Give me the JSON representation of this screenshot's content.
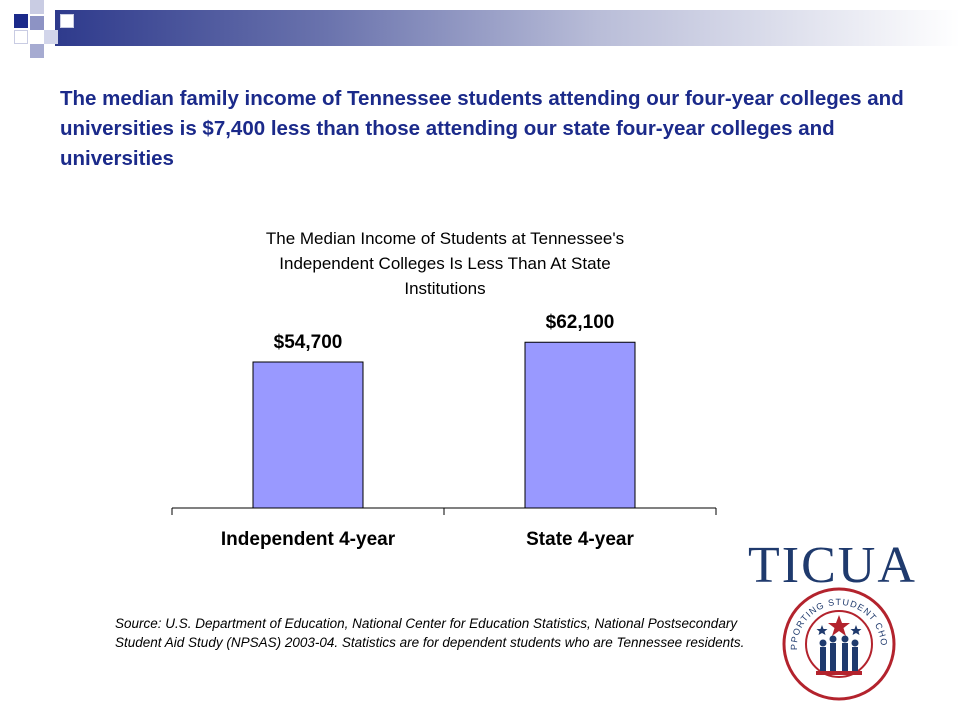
{
  "headline": "The median family income of Tennessee students attending our four-year colleges and universities is $7,400 less than those attending our state four-year colleges and universities",
  "chart_data": {
    "type": "bar",
    "title_lines": [
      "The Median Income of Students at Tennessee's",
      "Independent Colleges Is Less Than At State",
      "Institutions"
    ],
    "categories": [
      "Independent 4-year",
      "State 4-year"
    ],
    "values": [
      54700,
      62100
    ],
    "data_labels": [
      "$54,700",
      "$62,100"
    ],
    "bar_color": "#9999ff",
    "ylim": [
      0,
      70000
    ],
    "grid": false,
    "legend": "none"
  },
  "source_note": "Source: U.S. Department of Education, National Center for Education Statistics, National Postsecondary Student Aid Study (NPSAS) 2003-04. Statistics are for dependent students who are Tennessee residents.",
  "logo": {
    "name": "TICUA",
    "tagline": "SUPPORTING STUDENT CHOICE"
  },
  "colors": {
    "accent_navy": "#1b2a8a",
    "logo_blue": "#1f3a6d",
    "logo_red": "#b3232d"
  }
}
